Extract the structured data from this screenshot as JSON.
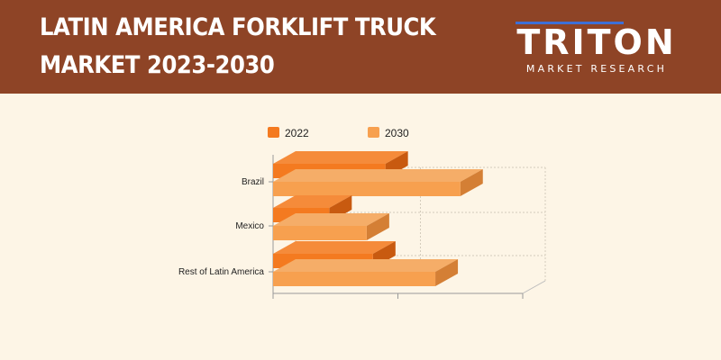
{
  "header": {
    "title_line1": "LATIN AMERICA FORKLIFT TRUCK",
    "title_line2": "MARKET 2023-2030",
    "logo_main": "TRITON",
    "logo_sub": "MARKET RESEARCH"
  },
  "colors": {
    "header_bg": "#8e4426",
    "page_bg": "#fdf5e6",
    "series_2022": "#f47a20",
    "series_2030": "#f7a04f",
    "logo_accent": "#3d6fd6"
  },
  "chart_data": {
    "type": "bar",
    "orientation": "horizontal",
    "style": "3d",
    "categories": [
      "Brazil",
      "Mexico",
      "Rest of Latin America"
    ],
    "series": [
      {
        "name": "2022",
        "values": [
          1.8,
          0.9,
          1.6
        ]
      },
      {
        "name": "2030",
        "values": [
          3.0,
          1.5,
          2.6
        ]
      }
    ],
    "xlim": [
      0,
      4
    ],
    "grid": true,
    "legend_position": "top"
  }
}
